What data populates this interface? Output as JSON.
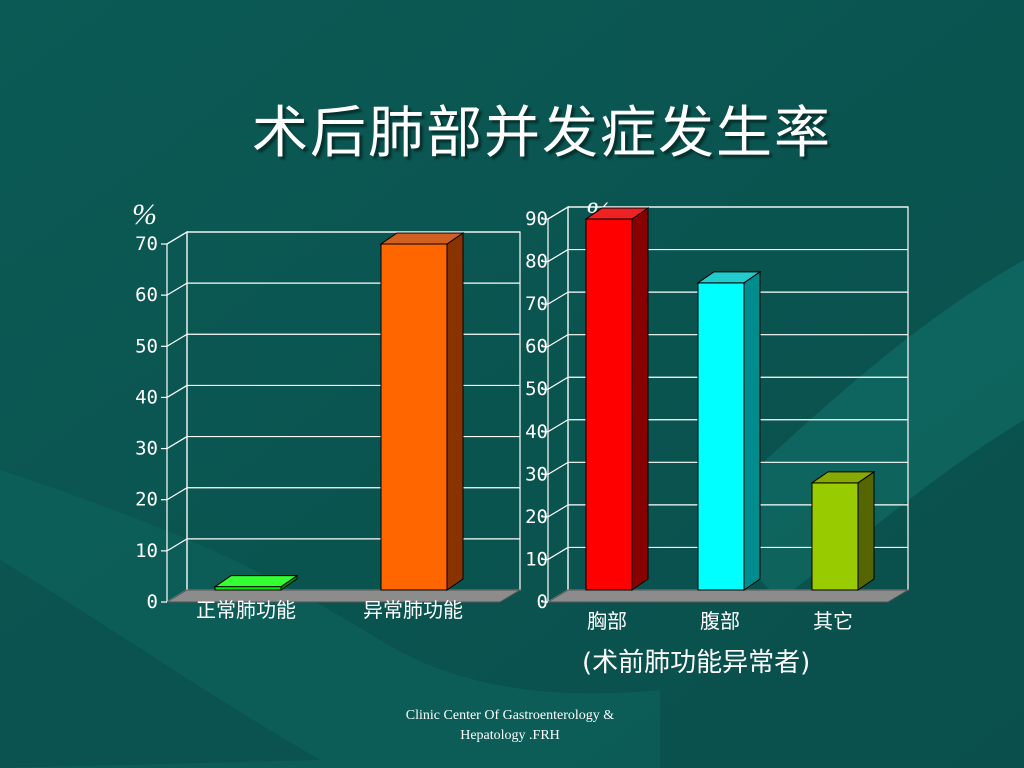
{
  "slide": {
    "title": "术后肺部并发症发生率",
    "footer_line1": "Clinic Center Of  Gastroenterology &",
    "footer_line2": "Hepatology .FRH",
    "note": "(术前肺功能异常者)"
  },
  "chart_data": [
    {
      "type": "bar",
      "style": "3d",
      "ylabel": "%",
      "categories": [
        "正常肺功能",
        "异常肺功能"
      ],
      "values": [
        3,
        70
      ],
      "ylim": [
        0,
        70
      ],
      "yticks": [
        0,
        10,
        20,
        30,
        40,
        50,
        60,
        70
      ],
      "colors": [
        "#00ee00",
        "#ff6600"
      ],
      "side_colors": [
        "#008800",
        "#883300"
      ],
      "top_colors": [
        "#33ff33",
        "#d06020"
      ],
      "grid": true
    },
    {
      "type": "bar",
      "style": "3d",
      "ylabel": "%",
      "categories": [
        "胸部",
        "腹部",
        "其它"
      ],
      "values": [
        90,
        75,
        28
      ],
      "ylim": [
        0,
        90
      ],
      "yticks": [
        0,
        10,
        20,
        30,
        40,
        50,
        60,
        70,
        80,
        90
      ],
      "colors": [
        "#ff0000",
        "#00ffff",
        "#99cc00"
      ],
      "side_colors": [
        "#880000",
        "#008c8c",
        "#556600"
      ],
      "top_colors": [
        "#ee2222",
        "#22cccc",
        "#88aa00"
      ],
      "grid": true
    }
  ]
}
